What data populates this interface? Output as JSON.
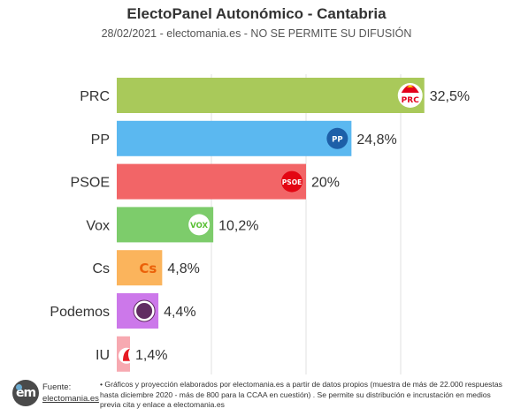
{
  "header": {
    "title": "ElectoPanel Autonómico - Cantabria",
    "subtitle": "28/02/2021 - electomania.es - NO SE PERMITE SU DIFUSIÓN"
  },
  "footer": {
    "logo_text": "em",
    "source_label": "Fuente:",
    "source_link": "electomania.es",
    "note": "• Gráficos y proyección elaborados por electomania.es a partir de datos propios (muestra de más de 22.000 respuestas hasta diciembre 2020 - más de 800 para la CCAA en cuestión) . Se permite su distribución e incrustación en medios previa cita y enlace a electomania.es"
  },
  "chart_data": {
    "type": "bar",
    "orientation": "horizontal",
    "title": "ElectoPanel Autonómico - Cantabria",
    "subtitle": "28/02/2021 - electomania.es - NO SE PERMITE SU DIFUSIÓN",
    "categories": [
      "PRC",
      "PP",
      "PSOE",
      "Vox",
      "Cs",
      "Podemos",
      "IU"
    ],
    "values": [
      32.5,
      24.8,
      20,
      10.2,
      4.8,
      4.4,
      1.4
    ],
    "value_labels": [
      "32,5%",
      "24,8%",
      "20%",
      "10,2%",
      "4,8%",
      "4,4%",
      "1,4%"
    ],
    "colors": [
      "#a9c95a",
      "#5bb8f0",
      "#f26567",
      "#7dcc6b",
      "#fbb45c",
      "#cc78ea",
      "#f7a9b1"
    ],
    "logo_labels": [
      "PRC",
      "PP",
      "PSOE",
      "VOX",
      "Cs",
      "",
      ""
    ],
    "logo_icons": [
      "prc-logo-icon",
      "pp-logo-icon",
      "psoe-logo-icon",
      "vox-logo-icon",
      "cs-logo-icon",
      "podemos-logo-icon",
      "iu-logo-icon"
    ],
    "logo_colors": [
      "#e3001b",
      "#1d5fa8",
      "#e30613",
      "#5ac035",
      "#eb6109",
      "#612d62",
      "#e51b24"
    ],
    "xlim": [
      0,
      40
    ],
    "grid": true
  }
}
